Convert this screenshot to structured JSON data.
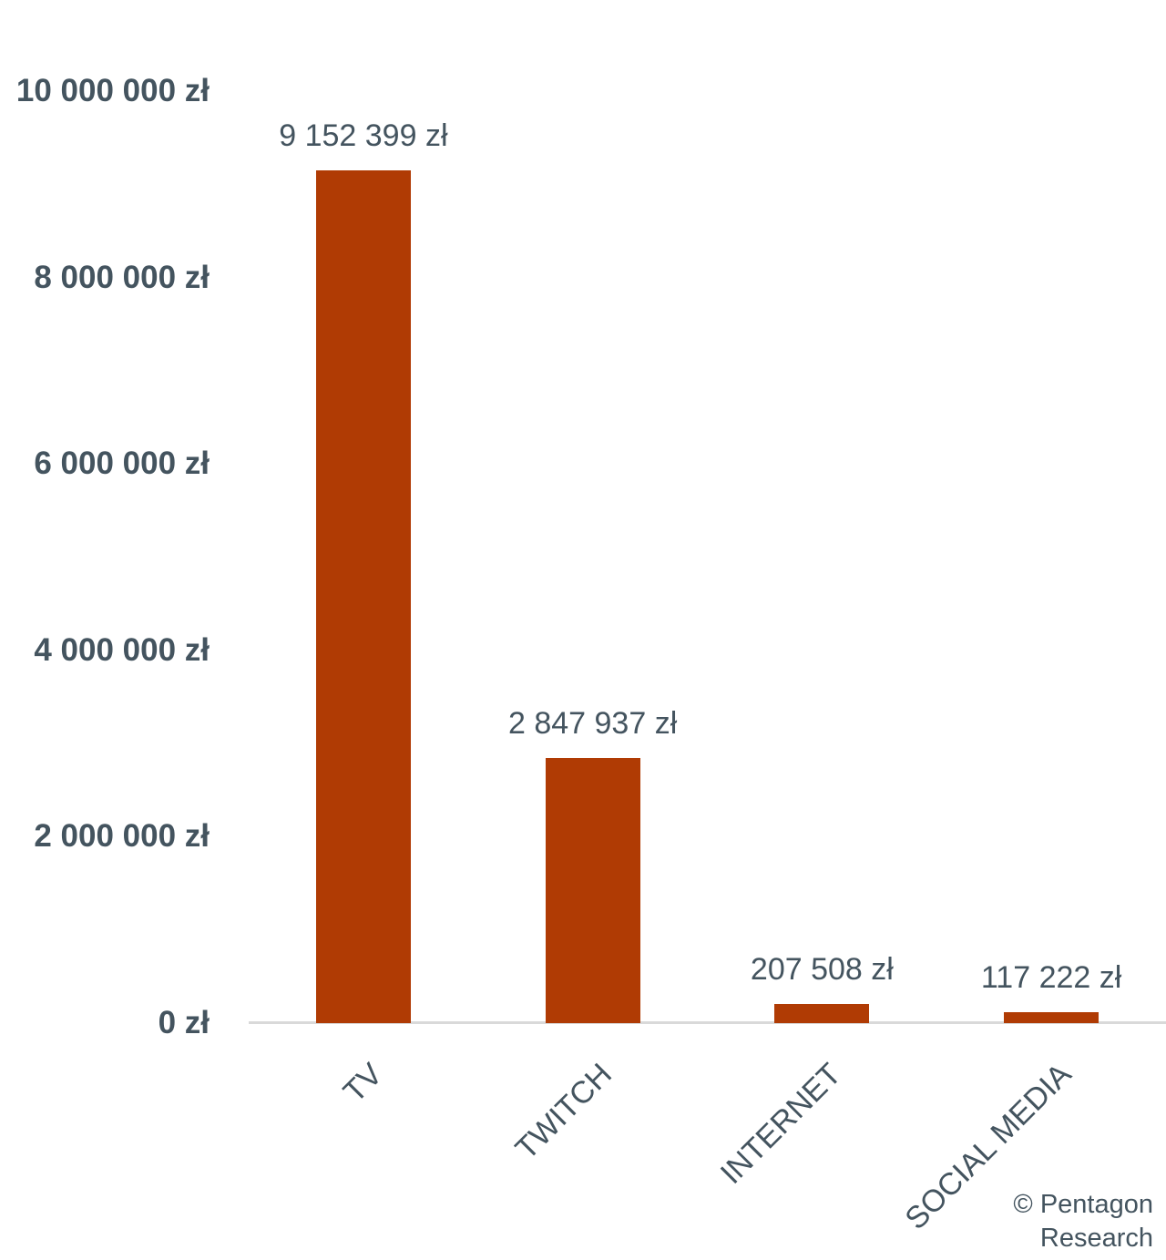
{
  "chart_data": {
    "type": "bar",
    "categories": [
      "TV",
      "TWITCH",
      "INTERNET",
      "SOCIAL MEDIA"
    ],
    "values": [
      9152399,
      2847937,
      207508,
      117222
    ],
    "data_labels": [
      "9 152 399 zł",
      "2 847 937 zł",
      "207 508 zł",
      "117 222 zł"
    ],
    "y_ticks": [
      {
        "value": 10000000,
        "label": "10 000 000 zł"
      },
      {
        "value": 8000000,
        "label": "8 000 000 zł"
      },
      {
        "value": 6000000,
        "label": "6 000 000 zł"
      },
      {
        "value": 4000000,
        "label": "4 000 000 zł"
      },
      {
        "value": 2000000,
        "label": "2 000 000 zł"
      },
      {
        "value": 0,
        "label": "0 zł"
      }
    ],
    "ylim": [
      0,
      10000000
    ],
    "xlabel": "",
    "ylabel": "",
    "title": "",
    "grid": false,
    "legend_position": "none",
    "bar_color": "#b03b04",
    "label_color": "#44545f",
    "axis_line_color": "#d9d9d9"
  },
  "footer": {
    "credit": "© Pentagon Research"
  }
}
